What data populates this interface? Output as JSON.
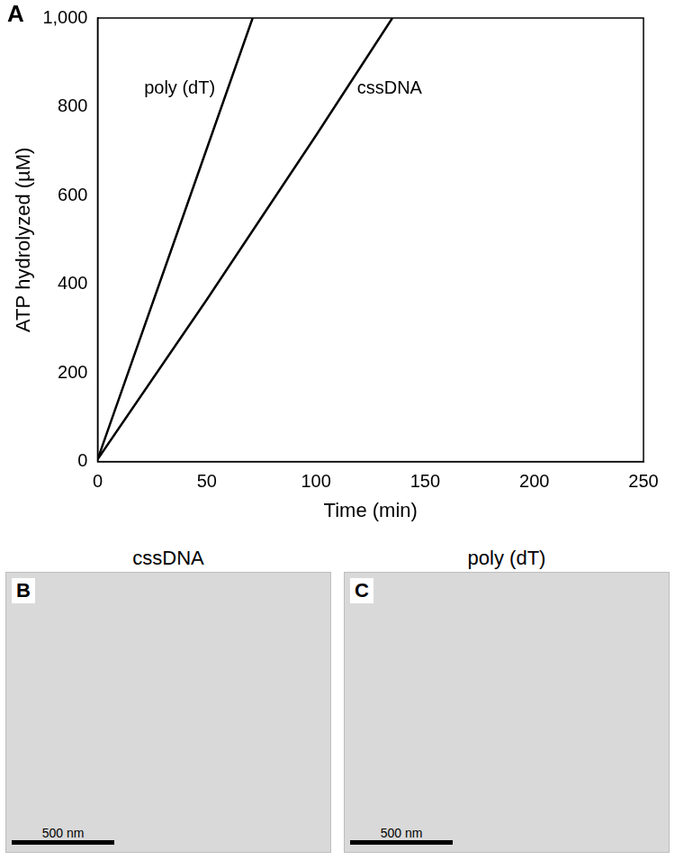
{
  "chart_data": {
    "type": "line",
    "panel_label": "A",
    "x_label": "Time (min)",
    "y_label": "ATP hydrolyzed (µM)",
    "series": [
      {
        "name": "poly (dT)",
        "color": "#000000",
        "x": [
          0,
          35,
          71
        ],
        "values": [
          5,
          495,
          1000
        ]
      },
      {
        "name": "cssDNA",
        "color": "#000000",
        "x": [
          0,
          50,
          100,
          135
        ],
        "values": [
          5,
          365,
          735,
          1000
        ]
      }
    ],
    "xlim": [
      0,
      250
    ],
    "xticks": [
      0,
      50,
      100,
      150,
      200,
      250
    ],
    "ylim": [
      0,
      1000
    ],
    "yticks": [
      0,
      200,
      400,
      600,
      800,
      1000
    ],
    "grid": false
  },
  "images": [
    {
      "label": "B",
      "title": "cssDNA",
      "scale_bar": "500 nm"
    },
    {
      "label": "C",
      "title": "poly (dT)",
      "scale_bar": "500 nm"
    }
  ]
}
